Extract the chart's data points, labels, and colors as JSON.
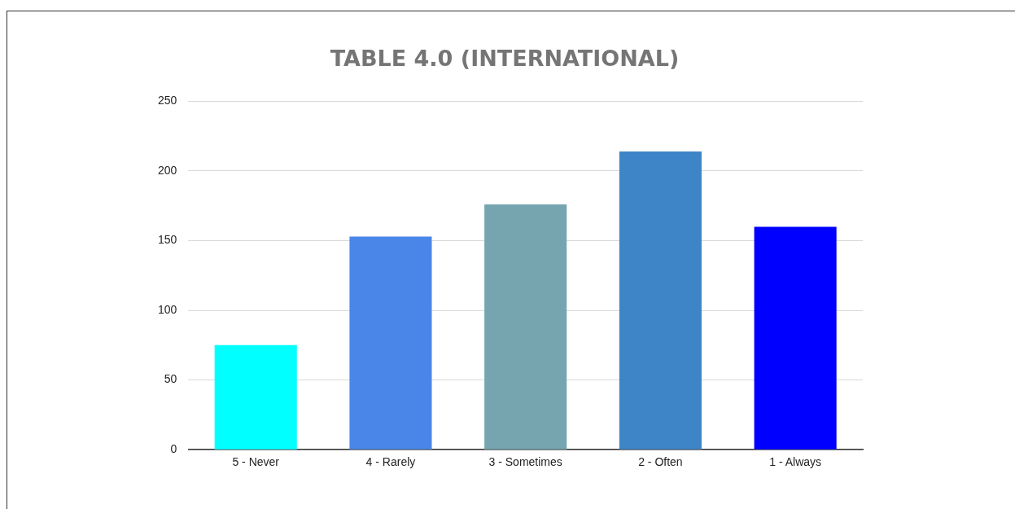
{
  "chart_data": {
    "type": "bar",
    "title": "TABLE 4.0 (INTERNATIONAL)",
    "categories": [
      "5 - Never",
      "4 - Rarely",
      "3 - Sometimes",
      "2 - Often",
      "1 - Always"
    ],
    "values": [
      75,
      153,
      176,
      214,
      160
    ],
    "colors": [
      "#00ffff",
      "#4a86e8",
      "#76a5af",
      "#3d85c6",
      "#0000ff"
    ],
    "ylim": [
      0,
      250
    ],
    "yticks": [
      0,
      50,
      100,
      150,
      200,
      250
    ],
    "grid": "y",
    "legend": false
  }
}
